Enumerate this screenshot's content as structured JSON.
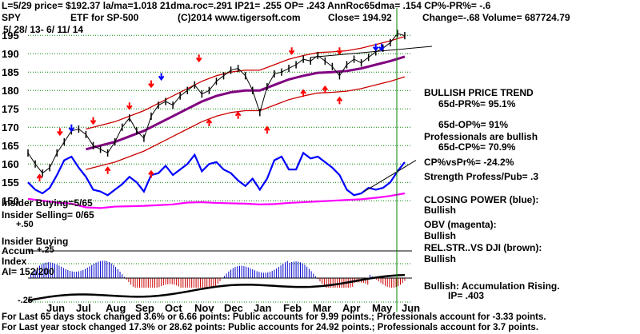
{
  "header": {
    "line1_left": "L=5/29   price= $192.37  la/ma=1.018 21dma.roc=.291 IP21= .255 OP= .243 AnnRoc65dma= .154 CP%-PR%= -.6",
    "ticker": "SPY",
    "etf_name": "ETF for SP-500",
    "copyright": "(C)2014 www.tigersoft.com",
    "close": "Close=  194.92",
    "change": "Change=-.68 Volume= 687724.79",
    "date_range": "5/ 28/ 13- 6/ 11/ 14"
  },
  "annotations": {
    "bullish_trend": "BULLISH PRICE TREND",
    "pr65": "65d-PR%= 95.1%",
    "op65": "65d-OP%= 91%",
    "prof_bullish": "Professionals are bullish",
    "cp65": "65d-CP%= 70.9%",
    "cpvspr": "CP%vsPr%= -24.2%",
    "strength": "Strength Profess/Pub= .3",
    "closing_power": "CLOSING POWER (blue):",
    "closing_power_val": "Bullish",
    "obv": "OBV (magenta):",
    "obv_val": "Bullish",
    "relstr": "REL.STR..VS DJI (brown):",
    "relstr_val": "Bullish",
    "accum": "Bullish: Accumulation Rising.",
    "ip": "IP=  .403",
    "insider_buying": "Insider Buying=5/65",
    "insider_selling": "Insider Selling= 0/65",
    "accum_label_1": "Insider Buying",
    "accum_label_2": "Accum",
    "accum_label_3": "Index",
    "accum_ai": "AI= 152/200",
    "accum_tick_top": "+.50",
    "accum_tick_mid": "+.25",
    "accum_tick_bot": "-.25"
  },
  "footer": {
    "line1": "For Last 65 days stock changed  3.6% or  6.66 points:  Public accounts for  9.99 points.;  Professionals account for -3.33 points.",
    "line2": "For Last year stock changed  17.3% or  28.62 points:  Public accounts for  24.92 points.;  Professionals account for  3.7 points."
  },
  "colors": {
    "price": "#000000",
    "closing_power": "#0000ff",
    "obv": "#ff00ff",
    "envelope": "#cc0000",
    "ma": "#800080",
    "grid": "#008000",
    "accum_blue": "#0000cc",
    "accum_red": "#cc0000",
    "relstr": "#000000",
    "sell_arrow": "#ff0000",
    "buy_arrow": "#ff0000",
    "signal_blue": "#0000ff",
    "vline": "#008000"
  },
  "chart_data": {
    "type": "line",
    "title": "SPY",
    "ylim": [
      147,
      197
    ],
    "yticks": [
      150,
      155,
      160,
      165,
      170,
      175,
      180,
      185,
      190,
      195
    ],
    "months": [
      "Jun",
      "Jul",
      "Aug",
      "Sep",
      "Oct",
      "Nov",
      "Dec",
      "Jan",
      "Feb",
      "Mar",
      "Apr",
      "May",
      "Jun"
    ],
    "series": [
      {
        "key": "price",
        "x": [
          0,
          5,
          10,
          15,
          20,
          25,
          30,
          35,
          40,
          45,
          50,
          55,
          60,
          65,
          70,
          75,
          80,
          85,
          90,
          95,
          100,
          105,
          110,
          115,
          120,
          125,
          130,
          135,
          140,
          145,
          150,
          155,
          160,
          165,
          170,
          175,
          180,
          185,
          190,
          195,
          200,
          205,
          210,
          215,
          220,
          225,
          230,
          235,
          240,
          245,
          250,
          255,
          260
        ],
        "values": [
          163,
          160,
          157.5,
          159,
          163,
          166,
          169,
          169.5,
          168,
          165,
          164,
          163,
          166,
          170,
          172.5,
          169,
          167,
          173,
          176,
          177,
          176,
          178.5,
          180,
          181.5,
          179,
          180,
          182.5,
          184,
          185.5,
          186,
          184,
          180,
          174,
          181,
          184.5,
          185,
          186,
          187,
          188.5,
          188,
          189.5,
          188,
          186.5,
          184,
          187,
          188.5,
          187.5,
          189,
          190.5,
          191.5,
          193,
          195.5,
          194.9
        ]
      },
      {
        "key": "closing_power",
        "x": [
          0,
          5,
          10,
          15,
          20,
          25,
          30,
          35,
          40,
          45,
          50,
          55,
          60,
          65,
          70,
          75,
          80,
          85,
          90,
          95,
          100,
          105,
          110,
          115,
          120,
          125,
          130,
          135,
          140,
          145,
          150,
          155,
          160,
          165,
          170,
          175,
          180,
          185,
          190,
          195,
          200,
          205,
          210,
          215,
          220,
          225,
          230,
          235,
          240,
          245,
          250,
          255,
          260
        ],
        "values": [
          155,
          153,
          152,
          153.5,
          157,
          161,
          162,
          159,
          156.5,
          153,
          152.5,
          151.5,
          153,
          154.5,
          156.5,
          155,
          152.5,
          157,
          157.5,
          159.5,
          157,
          158.5,
          160,
          162.5,
          158,
          160,
          160.5,
          158.5,
          157.5,
          155.5,
          154,
          156,
          153,
          156,
          161,
          162,
          158.5,
          158.5,
          163,
          161.5,
          162,
          160.5,
          159,
          157,
          153,
          151.5,
          152,
          153.5,
          153,
          153.5,
          155,
          158,
          160.5
        ]
      },
      {
        "key": "obv",
        "x": [
          0,
          10,
          20,
          30,
          40,
          50,
          60,
          70,
          80,
          90,
          100,
          110,
          120,
          130,
          140,
          150,
          160,
          170,
          180,
          190,
          200,
          210,
          220,
          230,
          240,
          250,
          260
        ],
        "values": [
          150.5,
          150,
          149.5,
          149.2,
          148.2,
          148,
          148.4,
          148.5,
          148.6,
          148.8,
          149,
          149.5,
          149.6,
          149.4,
          149.3,
          149.2,
          149,
          149.1,
          149.4,
          149.6,
          149.8,
          150,
          150.2,
          150.4,
          150.8,
          151.3,
          152
        ]
      },
      {
        "key": "ma",
        "x": [
          40,
          50,
          60,
          70,
          80,
          90,
          100,
          110,
          120,
          130,
          140,
          150,
          160,
          170,
          180,
          190,
          200,
          210,
          220,
          230,
          240,
          250,
          260
        ],
        "values": [
          164,
          165,
          166,
          167.5,
          169,
          171,
          173,
          175,
          177,
          178.5,
          179.5,
          180,
          180,
          181.5,
          183,
          184,
          184.8,
          185,
          185.3,
          186,
          187,
          188,
          189.2
        ]
      }
    ]
  }
}
